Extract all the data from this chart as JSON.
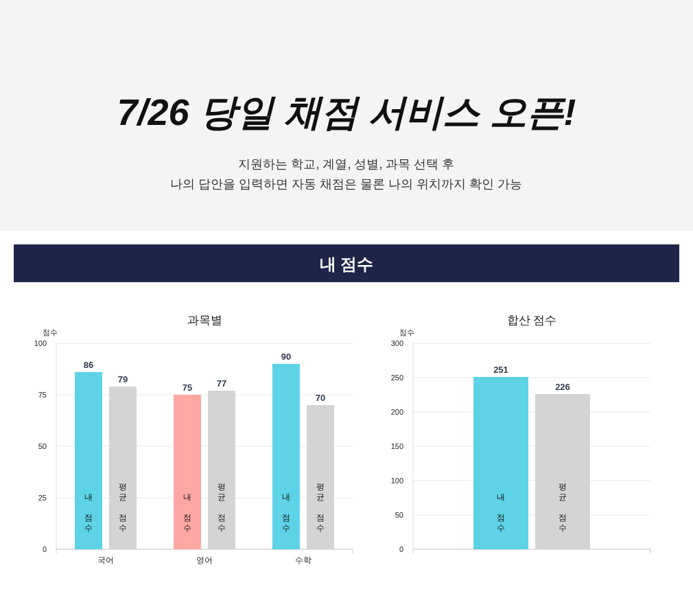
{
  "chart_data": [
    {
      "type": "other",
      "title": "7/26 당일 채점 서비스 오픈!",
      "subtitle": "지원하는 학교, 계열, 성별, 과목 선택 후\n나의 답안을 입력하면 자동 채점은 물론 나의 위치까지 확인 가능",
      "annotations": [
        "내 점수"
      ]
    },
    {
      "type": "bar",
      "title": "과목별",
      "ylabel": "점수",
      "categories": [
        "국어",
        "영어",
        "수학"
      ],
      "series": [
        {
          "name": "내 점수",
          "colors": [
            "#5dd3e5",
            "#ffa7a4",
            "#5dd3e5"
          ],
          "values": [
            86,
            75,
            90
          ]
        },
        {
          "name": "평균 점수",
          "color": "#d4d4d4",
          "values": [
            79,
            77,
            70
          ]
        }
      ],
      "ylim": [
        0,
        100
      ],
      "yticks": [
        0,
        25,
        50,
        75,
        100
      ],
      "grid": "y",
      "data_labels": true
    },
    {
      "type": "bar",
      "title": "합산 점수",
      "ylabel": "점수",
      "categories": [
        null
      ],
      "series": [
        {
          "name": "내 점수",
          "color": "#5dd3e5",
          "values": [
            251
          ]
        },
        {
          "name": "평균 점수",
          "color": "#d4d4d4",
          "values": [
            226
          ]
        }
      ],
      "ylim": [
        0,
        300
      ],
      "yticks": [
        0,
        50,
        100,
        150,
        200,
        250,
        300
      ],
      "grid": "y",
      "data_labels": true
    }
  ]
}
